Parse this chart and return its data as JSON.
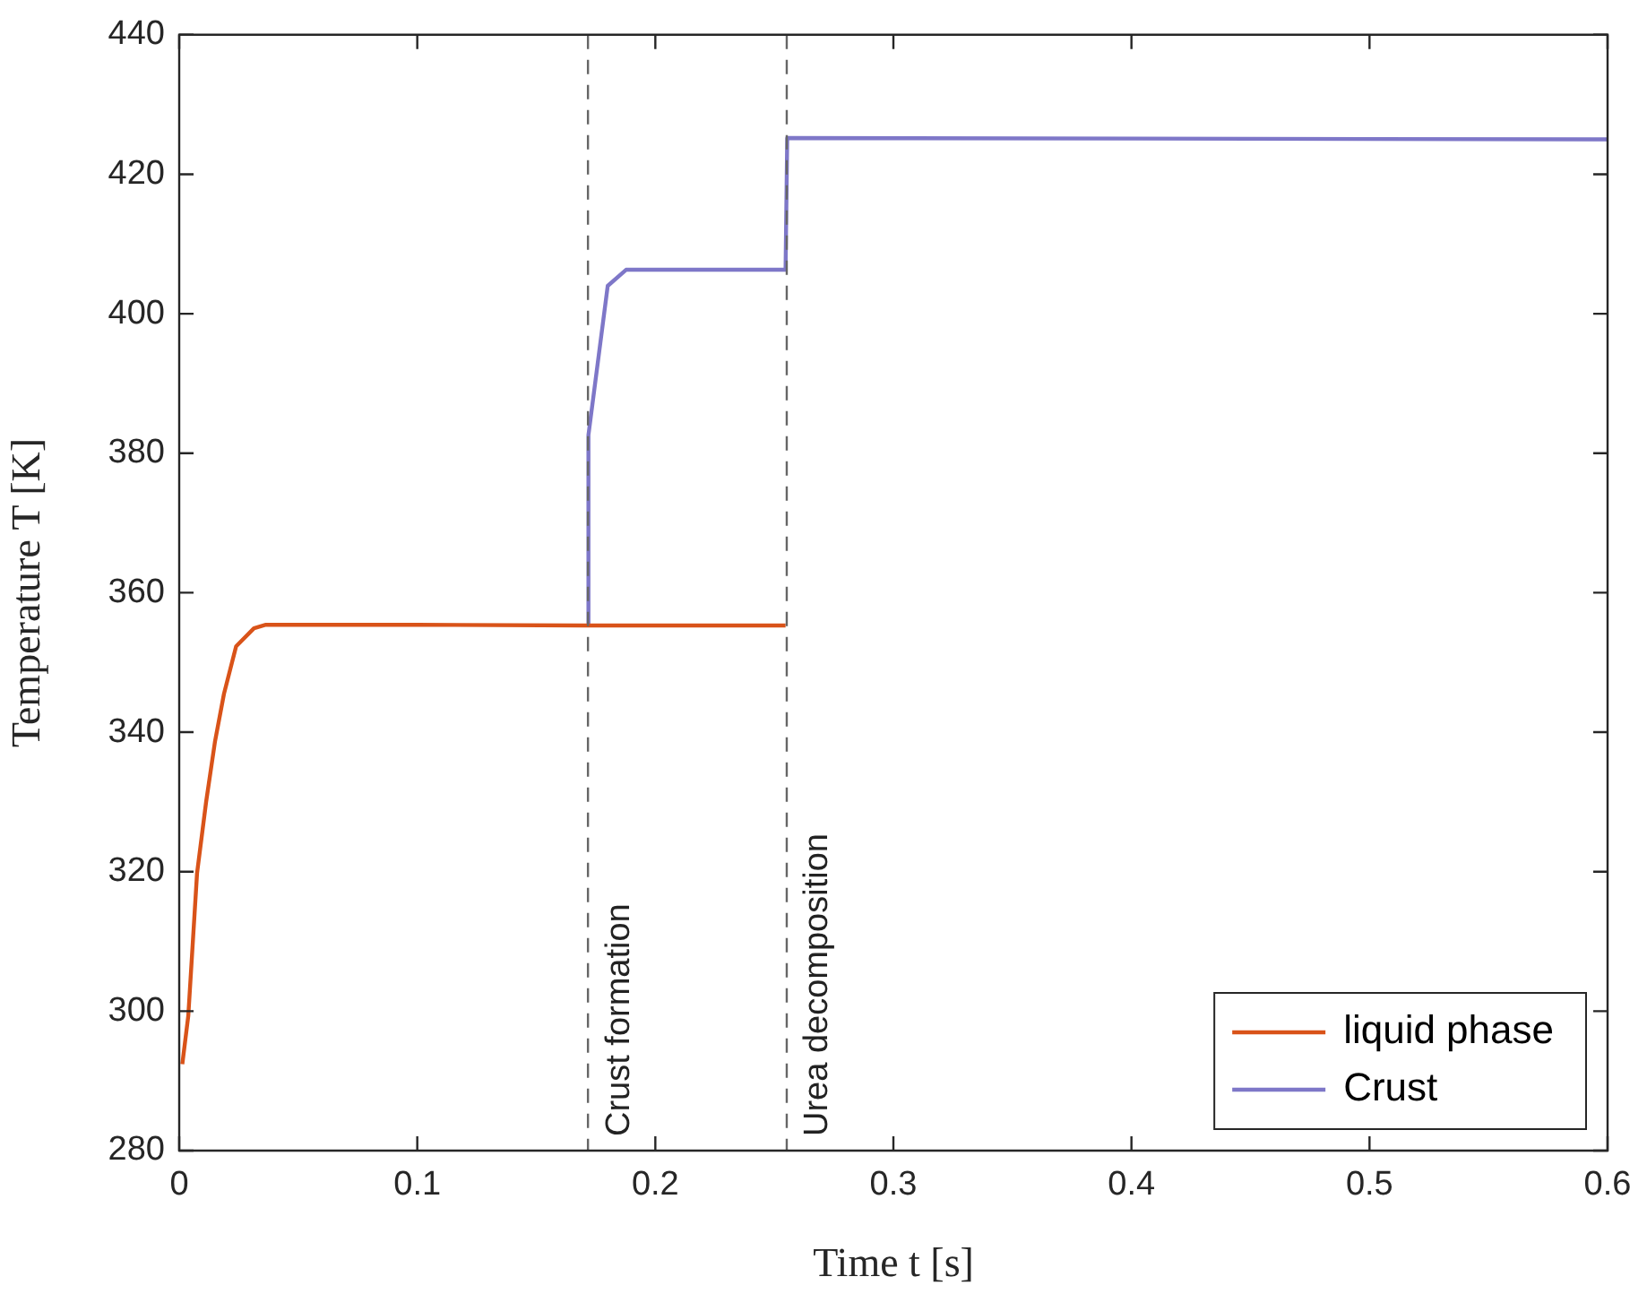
{
  "chart_data": {
    "type": "line",
    "xlabel": "Time t [s]",
    "ylabel": "Temperature T [K]",
    "xlim": [
      0,
      0.6
    ],
    "xticks": [
      0,
      0.1,
      0.2,
      0.3,
      0.4,
      0.5,
      0.6
    ],
    "ylim": [
      280,
      440
    ],
    "yticks": [
      280,
      300,
      320,
      340,
      360,
      380,
      400,
      420,
      440
    ],
    "grid": false,
    "legend": "bottom right",
    "line_style": "solid",
    "marker": "none",
    "series": [
      {
        "name": "liquid phase",
        "color": "#d95319",
        "x": [
          0.0013,
          0.0038,
          0.0075,
          0.0113,
          0.015,
          0.0188,
          0.0239,
          0.0314,
          0.0364,
          0.1,
          0.17,
          0.2547
        ],
        "values": [
          292.4,
          299.3,
          319.8,
          330,
          338.6,
          345.5,
          352.3,
          354.9,
          355.4,
          355.4,
          355.3,
          355.3
        ]
      },
      {
        "name": "Crust",
        "color": "#7e77c8",
        "x": [
          0.1719,
          0.1719,
          0.18,
          0.1877,
          0.2547,
          0.2554,
          0.6
        ],
        "values": [
          355.5,
          382.6,
          404,
          406.3,
          406.3,
          425.2,
          425
        ]
      }
    ],
    "ref_lines": [
      {
        "axis": "x",
        "value": 0.1717,
        "label": "Crust formation",
        "color": "#666666",
        "line_style": "dashed"
      },
      {
        "axis": "x",
        "value": 0.2552,
        "label": "Urea decomposition",
        "color": "#666666",
        "line_style": "dashed"
      }
    ]
  }
}
